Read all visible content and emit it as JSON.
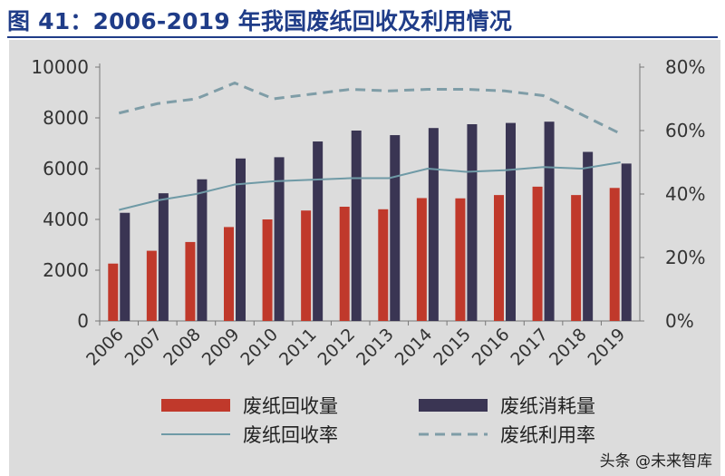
{
  "header": {
    "title": "图 41：2006-2019 年我国废纸回收及利用情况"
  },
  "watermark": {
    "text": "头条 @未来智库"
  },
  "chart_data": {
    "type": "bar",
    "categories": [
      "2006",
      "2007",
      "2008",
      "2009",
      "2010",
      "2011",
      "2012",
      "2013",
      "2014",
      "2015",
      "2016",
      "2017",
      "2018",
      "2019"
    ],
    "series": [
      {
        "name": "废纸回收量",
        "kind": "bar",
        "axis": "left",
        "color": "#c0392b",
        "values": [
          2260,
          2765,
          3110,
          3700,
          4000,
          4350,
          4500,
          4400,
          4840,
          4830,
          4960,
          5290,
          4960,
          5240
        ]
      },
      {
        "name": "废纸消耗量",
        "kind": "bar",
        "axis": "left",
        "color": "#3a3553",
        "values": [
          4260,
          5030,
          5580,
          6400,
          6450,
          7070,
          7500,
          7320,
          7600,
          7750,
          7800,
          7850,
          6660,
          6200
        ]
      },
      {
        "name": "废纸回收率",
        "kind": "line",
        "axis": "right",
        "color": "#6f9aa6",
        "style": "solid",
        "values": [
          35,
          38,
          40,
          43,
          44,
          44.5,
          45,
          45,
          48,
          47,
          47.5,
          48.5,
          48,
          50
        ]
      },
      {
        "name": "废纸利用率",
        "kind": "line",
        "axis": "right",
        "color": "#7f9da7",
        "style": "dashed",
        "values": [
          65.5,
          68.5,
          70,
          75,
          70,
          71.5,
          73,
          72.5,
          73,
          73,
          72.5,
          71,
          65,
          59
        ]
      }
    ],
    "y_left": {
      "range": [
        0,
        10000
      ],
      "ticks": [
        "0",
        "2000",
        "4000",
        "6000",
        "8000",
        "10000"
      ]
    },
    "y_right": {
      "range": [
        0,
        80
      ],
      "ticks": [
        "0%",
        "20%",
        "40%",
        "60%",
        "80%"
      ]
    },
    "grid": false,
    "legend_position": "bottom"
  }
}
